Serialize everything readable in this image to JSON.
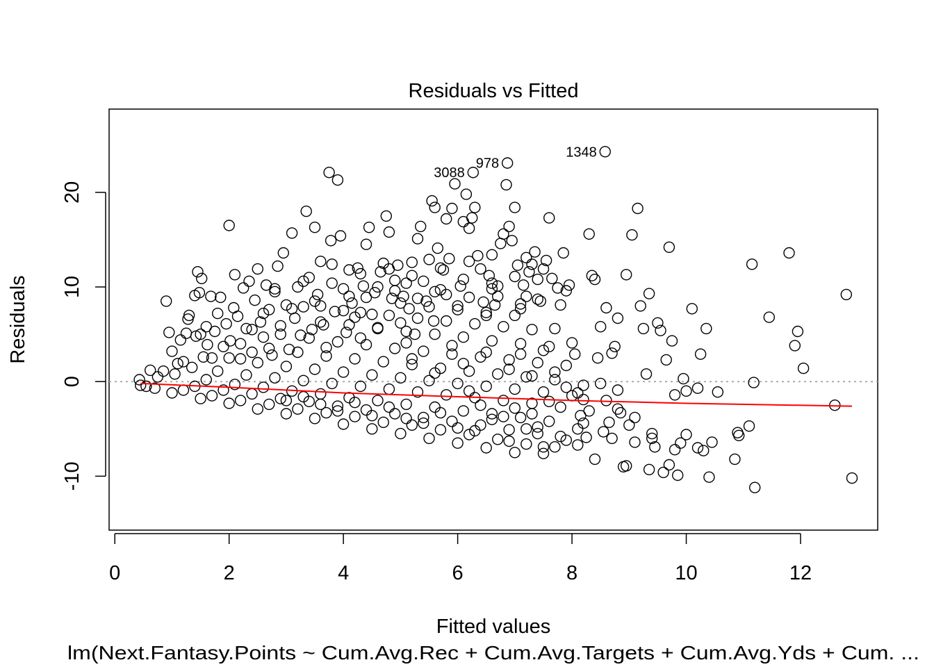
{
  "chart_data": {
    "type": "scatter",
    "title": "Residuals vs Fitted",
    "xlabel": "Fitted values",
    "ylabel": "Residuals",
    "subtitle": "lm(Next.Fantasy.Points ~ Cum.Avg.Rec + Cum.Avg.Targets + Cum.Avg.Yds + Cum. ...",
    "xlim": [
      -0.1,
      13.35
    ],
    "ylim": [
      -15.7,
      28.8
    ],
    "x_ticks": [
      0,
      2,
      4,
      6,
      8,
      10,
      12
    ],
    "y_ticks": [
      -10,
      0,
      10,
      20
    ],
    "x_tick_labels": [
      "0",
      "2",
      "4",
      "6",
      "8",
      "10",
      "12"
    ],
    "y_tick_labels": [
      "-10",
      "0",
      "10",
      "20"
    ],
    "reference_line": {
      "y": 0,
      "style": "dotted",
      "color": "#aaaaaa"
    },
    "smooth_line": {
      "color": "#ff0000",
      "x": [
        0.45,
        2,
        4,
        6,
        8,
        10,
        12.9
      ],
      "y": [
        -0.2,
        -0.6,
        -1.2,
        -1.6,
        -2.0,
        -2.3,
        -2.6
      ]
    },
    "labeled_points": [
      {
        "label": "1348",
        "x": 8.58,
        "y": 24.3
      },
      {
        "label": "978",
        "x": 6.87,
        "y": 23.1
      },
      {
        "label": "3088",
        "x": 6.27,
        "y": 22.1
      }
    ],
    "points": [
      [
        0.43,
        0.2
      ],
      [
        0.45,
        -0.4
      ],
      [
        0.55,
        -0.5
      ],
      [
        0.62,
        1.2
      ],
      [
        0.7,
        -0.7
      ],
      [
        0.75,
        0.5
      ],
      [
        0.85,
        1.1
      ],
      [
        0.9,
        8.5
      ],
      [
        0.95,
        5.2
      ],
      [
        1.0,
        3.2
      ],
      [
        1.05,
        0.8
      ],
      [
        1.1,
        1.9
      ],
      [
        1.15,
        4.4
      ],
      [
        1.2,
        2.1
      ],
      [
        1.25,
        5.1
      ],
      [
        1.28,
        6.6
      ],
      [
        1.3,
        7.0
      ],
      [
        1.35,
        1.5
      ],
      [
        1.4,
        9.1
      ],
      [
        1.42,
        4.8
      ],
      [
        1.45,
        11.6
      ],
      [
        1.48,
        9.4
      ],
      [
        1.5,
        5.0
      ],
      [
        1.52,
        10.9
      ],
      [
        1.55,
        2.6
      ],
      [
        1.6,
        5.8
      ],
      [
        1.62,
        3.9
      ],
      [
        1.68,
        9.0
      ],
      [
        1.7,
        2.5
      ],
      [
        1.75,
        5.3
      ],
      [
        1.8,
        7.2
      ],
      [
        1.85,
        8.9
      ],
      [
        1.9,
        3.7
      ],
      [
        1.95,
        6.1
      ],
      [
        2.0,
        16.5
      ],
      [
        2.02,
        4.3
      ],
      [
        2.08,
        7.8
      ],
      [
        2.1,
        11.3
      ],
      [
        2.15,
        6.9
      ],
      [
        2.2,
        2.4
      ],
      [
        2.25,
        9.9
      ],
      [
        2.3,
        5.6
      ],
      [
        2.35,
        10.6
      ],
      [
        2.4,
        3.1
      ],
      [
        2.45,
        8.6
      ],
      [
        2.5,
        11.9
      ],
      [
        2.55,
        6.3
      ],
      [
        2.6,
        4.7
      ],
      [
        2.65,
        10.2
      ],
      [
        2.7,
        7.6
      ],
      [
        2.75,
        2.8
      ],
      [
        2.8,
        9.5
      ],
      [
        2.85,
        12.2
      ],
      [
        2.9,
        5.9
      ],
      [
        2.95,
        13.6
      ],
      [
        3.0,
        8.1
      ],
      [
        3.05,
        3.4
      ],
      [
        3.1,
        15.7
      ],
      [
        3.15,
        6.7
      ],
      [
        3.2,
        10.0
      ],
      [
        3.25,
        4.9
      ],
      [
        3.3,
        7.9
      ],
      [
        3.35,
        18.0
      ],
      [
        3.4,
        11.0
      ],
      [
        3.45,
        5.5
      ],
      [
        3.5,
        16.3
      ],
      [
        3.55,
        9.2
      ],
      [
        3.6,
        12.7
      ],
      [
        3.65,
        6.0
      ],
      [
        3.7,
        3.6
      ],
      [
        3.75,
        22.1
      ],
      [
        3.78,
        14.9
      ],
      [
        3.8,
        10.4
      ],
      [
        3.85,
        7.4
      ],
      [
        3.9,
        21.3
      ],
      [
        3.95,
        15.4
      ],
      [
        4.0,
        9.8
      ],
      [
        4.05,
        5.2
      ],
      [
        4.1,
        11.8
      ],
      [
        4.15,
        8.3
      ],
      [
        4.2,
        6.8
      ],
      [
        4.25,
        12.0
      ],
      [
        4.3,
        4.6
      ],
      [
        4.35,
        10.1
      ],
      [
        4.4,
        14.5
      ],
      [
        4.45,
        16.3
      ],
      [
        4.5,
        7.1
      ],
      [
        4.55,
        9.4
      ],
      [
        4.6,
        5.7
      ],
      [
        4.65,
        11.6
      ],
      [
        4.7,
        12.5
      ],
      [
        4.75,
        17.5
      ],
      [
        4.8,
        15.8
      ],
      [
        4.85,
        8.8
      ],
      [
        4.9,
        10.7
      ],
      [
        4.95,
        12.3
      ],
      [
        5.0,
        6.2
      ],
      [
        5.05,
        9.0
      ],
      [
        5.1,
        4.1
      ],
      [
        5.15,
        7.7
      ],
      [
        5.2,
        11.2
      ],
      [
        5.25,
        5.0
      ],
      [
        5.3,
        15.1
      ],
      [
        5.35,
        16.4
      ],
      [
        5.4,
        10.6
      ],
      [
        5.45,
        8.5
      ],
      [
        5.5,
        12.9
      ],
      [
        5.55,
        19.1
      ],
      [
        5.58,
        6.4
      ],
      [
        5.6,
        18.4
      ],
      [
        5.65,
        14.1
      ],
      [
        5.7,
        9.7
      ],
      [
        5.75,
        11.8
      ],
      [
        5.8,
        17.2
      ],
      [
        5.85,
        13.0
      ],
      [
        5.9,
        18.3
      ],
      [
        5.95,
        20.9
      ],
      [
        6.0,
        8.0
      ],
      [
        6.05,
        10.1
      ],
      [
        6.1,
        16.9
      ],
      [
        6.15,
        19.8
      ],
      [
        6.2,
        16.2
      ],
      [
        6.25,
        17.3
      ],
      [
        6.3,
        18.4
      ],
      [
        6.35,
        13.3
      ],
      [
        6.4,
        11.9
      ],
      [
        6.45,
        8.4
      ],
      [
        6.5,
        7.0
      ],
      [
        6.55,
        11.2
      ],
      [
        6.6,
        9.8
      ],
      [
        6.65,
        8.1
      ],
      [
        6.7,
        10.1
      ],
      [
        6.75,
        14.6
      ],
      [
        6.8,
        15.6
      ],
      [
        6.85,
        20.8
      ],
      [
        6.9,
        16.4
      ],
      [
        6.95,
        14.9
      ],
      [
        7.0,
        18.4
      ],
      [
        7.05,
        12.3
      ],
      [
        7.1,
        7.7
      ],
      [
        7.15,
        10.2
      ],
      [
        7.2,
        9.0
      ],
      [
        7.25,
        11.6
      ],
      [
        7.3,
        12.4
      ],
      [
        7.35,
        13.7
      ],
      [
        7.4,
        10.8
      ],
      [
        7.45,
        8.5
      ],
      [
        7.5,
        11.9
      ],
      [
        7.55,
        12.8
      ],
      [
        7.6,
        17.3
      ],
      [
        7.65,
        10.9
      ],
      [
        7.7,
        5.6
      ],
      [
        7.75,
        9.9
      ],
      [
        7.8,
        8.1
      ],
      [
        7.85,
        13.6
      ],
      [
        7.9,
        9.6
      ],
      [
        7.95,
        10.2
      ],
      [
        8.0,
        4.1
      ],
      [
        8.05,
        2.9
      ],
      [
        8.1,
        -1.2
      ],
      [
        8.15,
        -3.6
      ],
      [
        8.2,
        -4.4
      ],
      [
        8.25,
        -5.9
      ],
      [
        8.3,
        15.6
      ],
      [
        8.35,
        11.2
      ],
      [
        8.4,
        10.8
      ],
      [
        8.45,
        2.5
      ],
      [
        8.5,
        5.8
      ],
      [
        8.55,
        -5.3
      ],
      [
        8.6,
        7.8
      ],
      [
        8.65,
        -4.3
      ],
      [
        8.7,
        3.0
      ],
      [
        8.75,
        3.7
      ],
      [
        8.8,
        6.7
      ],
      [
        8.85,
        -3.3
      ],
      [
        8.9,
        -9.0
      ],
      [
        8.95,
        11.3
      ],
      [
        9.0,
        -4.6
      ],
      [
        9.05,
        15.5
      ],
      [
        9.1,
        -6.4
      ],
      [
        9.15,
        18.3
      ],
      [
        9.2,
        8.0
      ],
      [
        9.25,
        5.6
      ],
      [
        9.3,
        0.8
      ],
      [
        9.35,
        9.3
      ],
      [
        9.4,
        -6.0
      ],
      [
        9.45,
        -6.9
      ],
      [
        9.5,
        6.2
      ],
      [
        9.55,
        5.4
      ],
      [
        9.6,
        -9.6
      ],
      [
        9.65,
        2.3
      ],
      [
        9.7,
        14.2
      ],
      [
        9.75,
        4.3
      ],
      [
        9.8,
        -1.4
      ],
      [
        9.85,
        -9.9
      ],
      [
        9.9,
        -6.5
      ],
      [
        9.95,
        0.3
      ],
      [
        10.0,
        -1.0
      ],
      [
        10.1,
        7.7
      ],
      [
        10.2,
        -0.7
      ],
      [
        10.25,
        2.9
      ],
      [
        10.3,
        -7.3
      ],
      [
        10.35,
        5.6
      ],
      [
        10.4,
        -10.1
      ],
      [
        10.45,
        -6.4
      ],
      [
        10.55,
        -1.1
      ],
      [
        10.85,
        -8.2
      ],
      [
        10.9,
        -5.4
      ],
      [
        10.92,
        -5.7
      ],
      [
        11.1,
        -4.7
      ],
      [
        11.15,
        12.4
      ],
      [
        11.18,
        -0.1
      ],
      [
        11.2,
        -11.2
      ],
      [
        11.45,
        6.8
      ],
      [
        11.8,
        13.6
      ],
      [
        11.9,
        3.8
      ],
      [
        11.95,
        5.3
      ],
      [
        12.05,
        1.4
      ],
      [
        12.6,
        -2.5
      ],
      [
        12.8,
        9.2
      ],
      [
        12.9,
        -10.2
      ],
      [
        1.0,
        -1.2
      ],
      [
        1.5,
        -1.8
      ],
      [
        2.0,
        -2.3
      ],
      [
        2.5,
        -2.9
      ],
      [
        3.0,
        -3.4
      ],
      [
        3.5,
        -3.9
      ],
      [
        4.0,
        -4.5
      ],
      [
        4.5,
        -5.0
      ],
      [
        5.0,
        -5.5
      ],
      [
        5.5,
        -6.0
      ],
      [
        6.0,
        -6.5
      ],
      [
        6.5,
        -7.0
      ],
      [
        7.0,
        -7.5
      ],
      [
        7.5,
        -7.6
      ],
      [
        1.2,
        -0.9
      ],
      [
        1.7,
        -1.5
      ],
      [
        2.2,
        -2.0
      ],
      [
        2.7,
        -2.4
      ],
      [
        3.2,
        -2.9
      ],
      [
        3.7,
        -3.3
      ],
      [
        4.2,
        -3.7
      ],
      [
        4.7,
        -4.3
      ],
      [
        5.2,
        -4.6
      ],
      [
        5.7,
        -5.1
      ],
      [
        6.2,
        -5.6
      ],
      [
        6.7,
        -6.1
      ],
      [
        7.2,
        -6.6
      ],
      [
        7.7,
        -6.9
      ],
      [
        1.4,
        -0.5
      ],
      [
        1.9,
        -0.9
      ],
      [
        2.4,
        -1.3
      ],
      [
        2.9,
        -1.8
      ],
      [
        3.4,
        -2.1
      ],
      [
        3.9,
        -2.6
      ],
      [
        4.4,
        -3.0
      ],
      [
        4.9,
        -3.4
      ],
      [
        5.4,
        -3.8
      ],
      [
        5.9,
        -4.2
      ],
      [
        6.4,
        -4.6
      ],
      [
        6.9,
        -5.1
      ],
      [
        7.4,
        -5.5
      ],
      [
        7.9,
        -6.2
      ],
      [
        1.6,
        0.2
      ],
      [
        2.1,
        -0.3
      ],
      [
        2.6,
        -0.6
      ],
      [
        3.1,
        -1.0
      ],
      [
        3.6,
        -1.3
      ],
      [
        4.1,
        -1.7
      ],
      [
        4.6,
        -2.0
      ],
      [
        5.1,
        -2.4
      ],
      [
        5.6,
        -2.7
      ],
      [
        6.1,
        -3.1
      ],
      [
        6.6,
        -3.4
      ],
      [
        7.1,
        -3.8
      ],
      [
        7.6,
        -4.2
      ],
      [
        8.1,
        -5.0
      ],
      [
        1.8,
        1.1
      ],
      [
        2.3,
        0.7
      ],
      [
        2.8,
        0.4
      ],
      [
        3.3,
        0.1
      ],
      [
        3.8,
        -0.2
      ],
      [
        4.3,
        -0.5
      ],
      [
        4.8,
        -0.8
      ],
      [
        5.3,
        -1.1
      ],
      [
        5.8,
        -1.4
      ],
      [
        6.3,
        -1.7
      ],
      [
        6.8,
        -2.0
      ],
      [
        7.3,
        -2.3
      ],
      [
        7.8,
        -2.7
      ],
      [
        8.3,
        -3.1
      ],
      [
        2.0,
        2.5
      ],
      [
        2.5,
        2.0
      ],
      [
        3.0,
        1.6
      ],
      [
        3.5,
        1.3
      ],
      [
        4.0,
        1.0
      ],
      [
        4.5,
        0.7
      ],
      [
        5.0,
        0.4
      ],
      [
        5.5,
        0.1
      ],
      [
        6.0,
        -0.2
      ],
      [
        6.5,
        -0.5
      ],
      [
        7.0,
        -0.8
      ],
      [
        7.5,
        -1.1
      ],
      [
        8.0,
        -1.5
      ],
      [
        8.6,
        -2.0
      ],
      [
        2.2,
        4.0
      ],
      [
        2.7,
        3.5
      ],
      [
        3.2,
        3.1
      ],
      [
        3.7,
        2.7
      ],
      [
        4.2,
        2.4
      ],
      [
        4.7,
        2.1
      ],
      [
        5.2,
        1.8
      ],
      [
        5.7,
        1.4
      ],
      [
        6.2,
        1.1
      ],
      [
        6.7,
        0.8
      ],
      [
        7.2,
        0.5
      ],
      [
        7.7,
        0.2
      ],
      [
        8.2,
        -0.4
      ],
      [
        8.8,
        -0.9
      ],
      [
        2.4,
        5.5
      ],
      [
        2.9,
        5.0
      ],
      [
        3.4,
        4.6
      ],
      [
        3.9,
        4.2
      ],
      [
        4.4,
        3.9
      ],
      [
        4.9,
        3.5
      ],
      [
        5.4,
        3.2
      ],
      [
        5.9,
        2.9
      ],
      [
        6.4,
        2.6
      ],
      [
        6.9,
        2.3
      ],
      [
        7.4,
        2.0
      ],
      [
        7.9,
        1.7
      ],
      [
        3.6,
        6.3
      ],
      [
        4.1,
        6.0
      ],
      [
        4.6,
        5.6
      ],
      [
        5.1,
        5.3
      ],
      [
        5.6,
        5.0
      ],
      [
        6.1,
        4.7
      ],
      [
        6.6,
        4.3
      ],
      [
        7.1,
        4.0
      ],
      [
        7.6,
        3.7
      ],
      [
        4.3,
        7.3
      ],
      [
        4.8,
        7.0
      ],
      [
        5.3,
        6.7
      ],
      [
        5.8,
        6.4
      ],
      [
        6.3,
        6.1
      ],
      [
        6.8,
        5.8
      ],
      [
        7.3,
        5.5
      ],
      [
        5.0,
        8.3
      ],
      [
        5.5,
        7.9
      ],
      [
        6.0,
        7.6
      ],
      [
        6.5,
        7.3
      ],
      [
        7.0,
        7.0
      ],
      [
        3.0,
        -2.0
      ],
      [
        3.3,
        -1.6
      ],
      [
        3.6,
        -2.4
      ],
      [
        3.9,
        -3.1
      ],
      [
        4.2,
        -2.2
      ],
      [
        4.5,
        -3.6
      ],
      [
        4.8,
        -2.7
      ],
      [
        5.1,
        -3.9
      ],
      [
        5.4,
        -4.4
      ],
      [
        5.7,
        -3.3
      ],
      [
        6.0,
        -4.9
      ],
      [
        6.3,
        -5.2
      ],
      [
        6.6,
        -4.0
      ],
      [
        6.9,
        -6.3
      ],
      [
        7.2,
        -5.0
      ],
      [
        7.5,
        -6.9
      ],
      [
        7.8,
        -5.8
      ],
      [
        8.1,
        -6.7
      ],
      [
        8.4,
        -8.2
      ],
      [
        8.7,
        -6.0
      ],
      [
        7.0,
        -2.8
      ],
      [
        7.3,
        -3.4
      ],
      [
        7.6,
        -2.1
      ],
      [
        7.9,
        -0.6
      ],
      [
        8.2,
        -1.9
      ],
      [
        8.5,
        -0.2
      ],
      [
        8.8,
        -2.9
      ],
      [
        9.1,
        -3.8
      ],
      [
        9.4,
        -5.5
      ],
      [
        9.7,
        -8.8
      ],
      [
        9.8,
        -7.2
      ],
      [
        10.0,
        -5.6
      ],
      [
        10.2,
        -7.0
      ],
      [
        9.35,
        -9.3
      ],
      [
        8.95,
        -8.9
      ],
      [
        6.2,
        -1.0
      ],
      [
        6.4,
        -2.5
      ],
      [
        6.8,
        -3.7
      ],
      [
        7.4,
        -4.8
      ],
      [
        5.2,
        2.4
      ],
      [
        5.6,
        0.9
      ],
      [
        5.9,
        3.8
      ],
      [
        6.1,
        1.9
      ],
      [
        6.5,
        3.1
      ],
      [
        6.9,
        1.3
      ],
      [
        7.1,
        2.9
      ],
      [
        7.3,
        0.6
      ],
      [
        7.5,
        3.3
      ],
      [
        7.7,
        1.0
      ],
      [
        3.5,
        8.5
      ],
      [
        4.0,
        7.5
      ],
      [
        4.4,
        8.9
      ],
      [
        4.9,
        9.6
      ],
      [
        5.3,
        8.8
      ],
      [
        5.8,
        9.2
      ],
      [
        6.2,
        8.9
      ],
      [
        6.7,
        9.0
      ],
      [
        7.1,
        8.2
      ],
      [
        7.4,
        8.7
      ],
      [
        2.6,
        7.2
      ],
      [
        3.1,
        7.7
      ],
      [
        3.6,
        8.0
      ],
      [
        4.1,
        9.0
      ],
      [
        4.6,
        10.0
      ],
      [
        5.1,
        10.4
      ],
      [
        5.6,
        9.5
      ],
      [
        6.1,
        10.8
      ],
      [
        6.6,
        10.4
      ],
      [
        7.0,
        11.1
      ],
      [
        2.8,
        9.8
      ],
      [
        3.3,
        10.6
      ],
      [
        3.8,
        12.4
      ],
      [
        4.3,
        11.4
      ],
      [
        4.8,
        11.9
      ],
      [
        5.2,
        12.6
      ],
      [
        5.7,
        12.0
      ],
      [
        6.2,
        12.7
      ],
      [
        6.6,
        13.4
      ],
      [
        7.2,
        13.1
      ]
    ]
  }
}
